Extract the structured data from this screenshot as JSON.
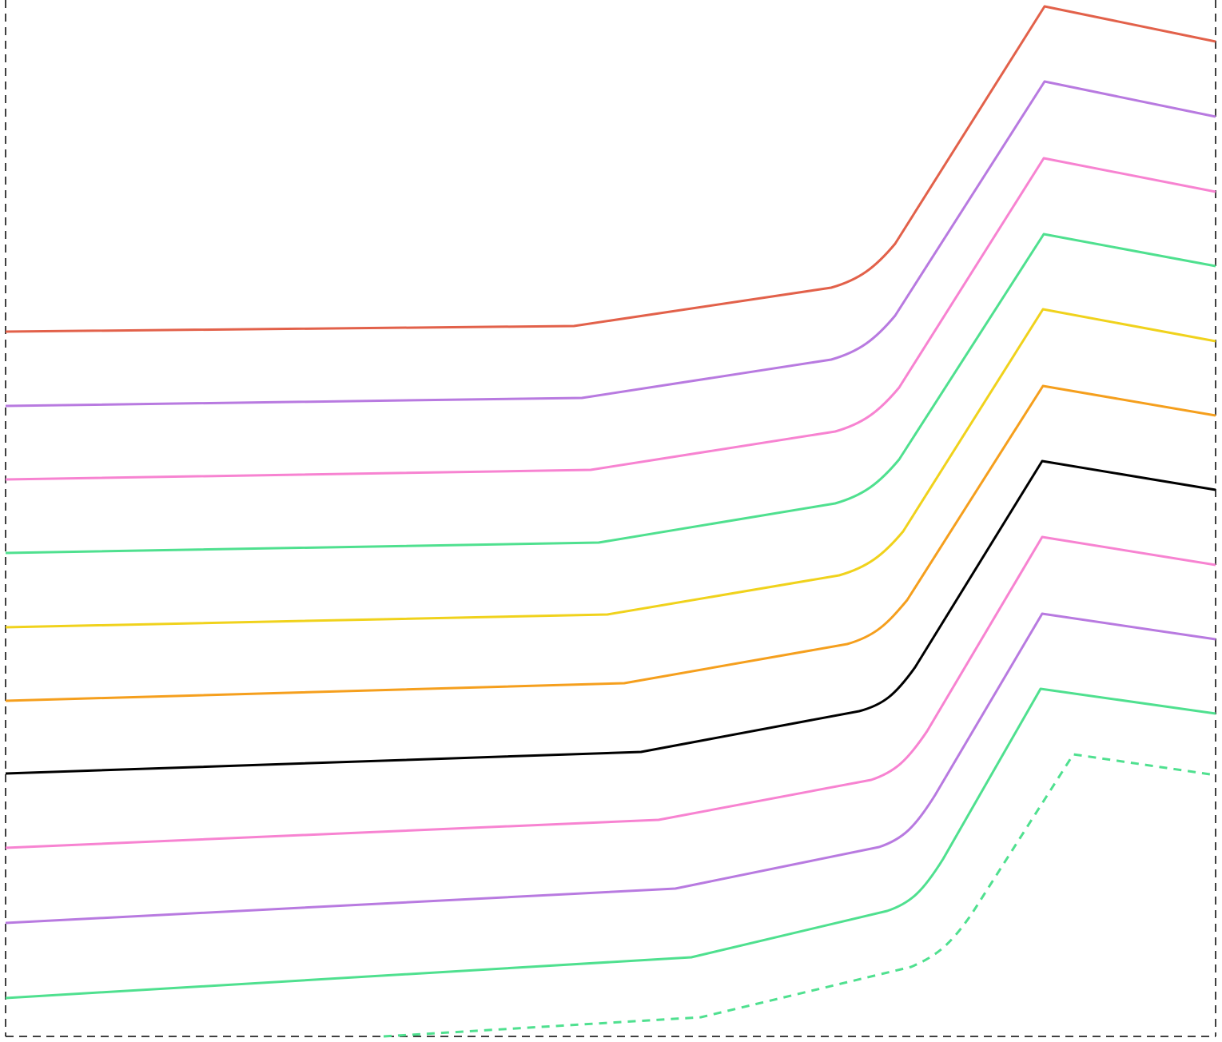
{
  "diagram": {
    "description_visible_text": "",
    "frame": {
      "style": "dashed",
      "color": "#000000",
      "sides": [
        "left",
        "right",
        "bottom"
      ]
    },
    "curves": [
      {
        "id": "curve-1",
        "color": "#e2614a",
        "style": "solid"
      },
      {
        "id": "curve-2",
        "color": "#b87ae0",
        "style": "solid"
      },
      {
        "id": "curve-3",
        "color": "#f783d1",
        "style": "solid"
      },
      {
        "id": "curve-4",
        "color": "#4fe08f",
        "style": "solid"
      },
      {
        "id": "curve-5",
        "color": "#f0d21c",
        "style": "solid"
      },
      {
        "id": "curve-6",
        "color": "#f59f1d",
        "style": "solid"
      },
      {
        "id": "curve-7",
        "color": "#000000",
        "style": "solid"
      },
      {
        "id": "curve-8",
        "color": "#f783d1",
        "style": "solid"
      },
      {
        "id": "curve-9",
        "color": "#b87ae0",
        "style": "solid"
      },
      {
        "id": "curve-10",
        "color": "#4fe08f",
        "style": "solid"
      },
      {
        "id": "curve-11",
        "color": "#4fe08f",
        "style": "dashed"
      }
    ]
  }
}
